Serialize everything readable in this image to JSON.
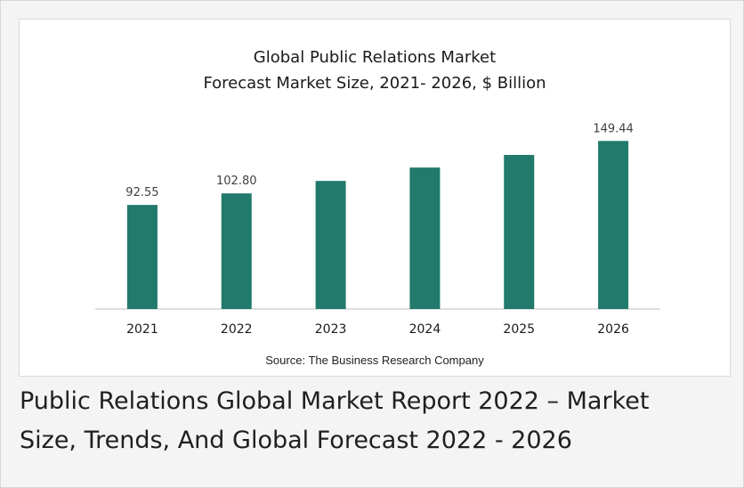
{
  "chart_data": {
    "type": "bar",
    "title": "Global Public Relations Market",
    "subtitle": "Forecast Market Size, 2021- 2026, $ Billion",
    "categories": [
      "2021",
      "2022",
      "2023",
      "2024",
      "2025",
      "2026"
    ],
    "values": [
      92.55,
      102.8,
      113.9,
      125.8,
      137.0,
      149.44
    ],
    "data_labels": [
      "92.55",
      "102.80",
      "",
      "",
      "",
      "149.44"
    ],
    "ylim": [
      0,
      156
    ],
    "grid": false,
    "legend": "none",
    "bar_color": "#217a6b"
  },
  "source": "Source: The Business Research Company",
  "caption": {
    "line1": "Public Relations Global Market Report 2022 – Market",
    "line2": "Size, Trends, And Global Forecast 2022 - 2026"
  }
}
